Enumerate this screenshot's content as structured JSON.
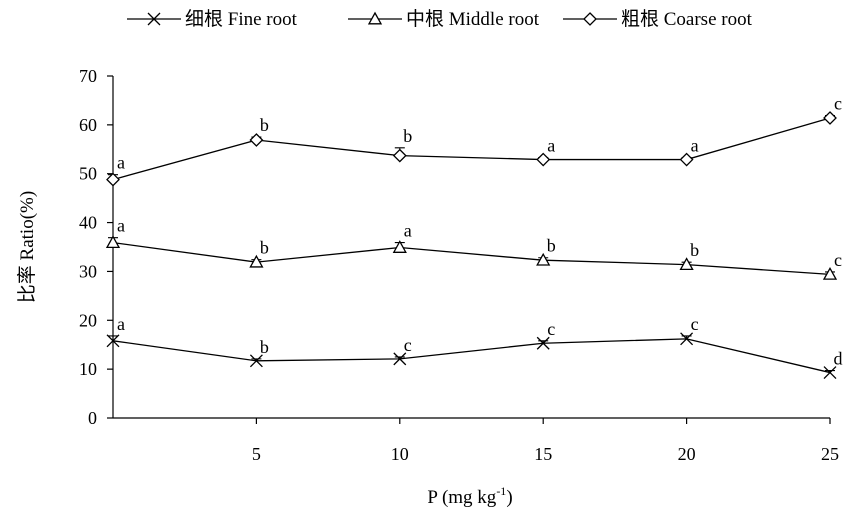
{
  "chart_data": {
    "type": "line",
    "xlabel": "P (mg kg",
    "xlabel_sup": "-1",
    "xlabel_close": ")",
    "ylabel": "比率 Ratio(%)",
    "x": [
      0,
      5,
      10,
      15,
      20,
      25
    ],
    "x_tick_labels": [
      "5",
      "10",
      "15",
      "20",
      "25"
    ],
    "xlim": [
      0,
      25
    ],
    "ylim": [
      0,
      70
    ],
    "y_ticks": [
      0,
      10,
      20,
      30,
      40,
      50,
      60,
      70
    ],
    "grid": false,
    "legend_position": "top",
    "series": [
      {
        "name": "细根 Fine root",
        "marker": "x",
        "values": [
          15.8,
          11.7,
          12.1,
          15.3,
          16.2,
          9.3
        ],
        "errors": [
          1.0,
          0.4,
          0.4,
          0.5,
          0.6,
          0.4
        ],
        "labels": [
          "a",
          "b",
          "c",
          "c",
          "c",
          "d"
        ]
      },
      {
        "name": "中根 Middle root",
        "marker": "triangle",
        "values": [
          35.9,
          31.9,
          34.9,
          32.3,
          31.4,
          29.4
        ],
        "errors": [
          1.0,
          0.5,
          1.0,
          0.5,
          0.5,
          0.5
        ],
        "labels": [
          "a",
          "b",
          "a",
          "b",
          "b",
          "c"
        ]
      },
      {
        "name": "粗根 Coarse root",
        "marker": "diamond",
        "values": [
          48.8,
          56.9,
          53.7,
          52.9,
          52.9,
          61.4
        ],
        "errors": [
          1.0,
          0.6,
          1.6,
          0.4,
          0.4,
          0.5
        ],
        "labels": [
          "a",
          "b",
          "b",
          "a",
          "a",
          "c"
        ]
      }
    ]
  }
}
